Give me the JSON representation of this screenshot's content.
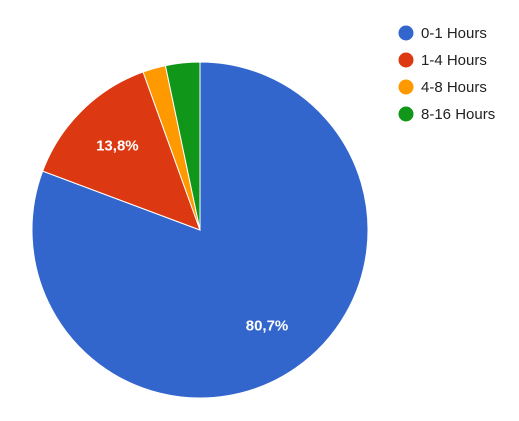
{
  "chart_data": {
    "type": "pie",
    "categories": [
      "0-1 Hours",
      "1-4 Hours",
      "4-8 Hours",
      "8-16 Hours"
    ],
    "values": [
      80.7,
      13.8,
      2.2,
      3.3
    ],
    "value_labels": [
      "80,7%",
      "13,8%",
      null,
      null
    ],
    "colors": [
      "#3366cc",
      "#dc3912",
      "#ff9900",
      "#109618"
    ],
    "legend": "right"
  }
}
